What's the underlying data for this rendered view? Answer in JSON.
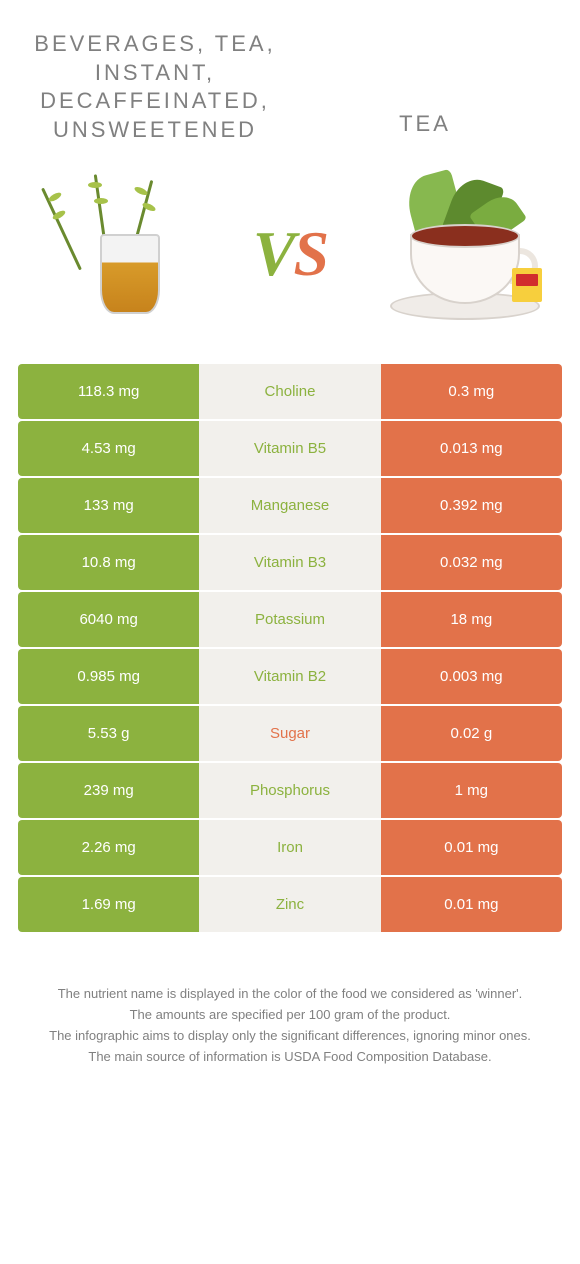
{
  "colors": {
    "left": "#8cb23f",
    "right": "#e2724a",
    "mid_bg": "#f2f0ec",
    "text_gray": "#808080"
  },
  "header": {
    "left_title": "Beverages, tea, instant, decaffeinated, unsweetened",
    "right_title": "Tea",
    "vs_v": "V",
    "vs_s": "S"
  },
  "rows": [
    {
      "name": "Choline",
      "left": "118.3 mg",
      "right": "0.3 mg",
      "winner": "left"
    },
    {
      "name": "Vitamin B5",
      "left": "4.53 mg",
      "right": "0.013 mg",
      "winner": "left"
    },
    {
      "name": "Manganese",
      "left": "133 mg",
      "right": "0.392 mg",
      "winner": "left"
    },
    {
      "name": "Vitamin B3",
      "left": "10.8 mg",
      "right": "0.032 mg",
      "winner": "left"
    },
    {
      "name": "Potassium",
      "left": "6040 mg",
      "right": "18 mg",
      "winner": "left"
    },
    {
      "name": "Vitamin B2",
      "left": "0.985 mg",
      "right": "0.003 mg",
      "winner": "left"
    },
    {
      "name": "Sugar",
      "left": "5.53 g",
      "right": "0.02 g",
      "winner": "right"
    },
    {
      "name": "Phosphorus",
      "left": "239 mg",
      "right": "1 mg",
      "winner": "left"
    },
    {
      "name": "Iron",
      "left": "2.26 mg",
      "right": "0.01 mg",
      "winner": "left"
    },
    {
      "name": "Zinc",
      "left": "1.69 mg",
      "right": "0.01 mg",
      "winner": "left"
    }
  ],
  "footnotes": [
    "The nutrient name is displayed in the color of the food we considered as 'winner'.",
    "The amounts are specified per 100 gram of the product.",
    "The infographic aims to display only the significant differences, ignoring minor ones.",
    "The main source of information is USDA Food Composition Database."
  ]
}
